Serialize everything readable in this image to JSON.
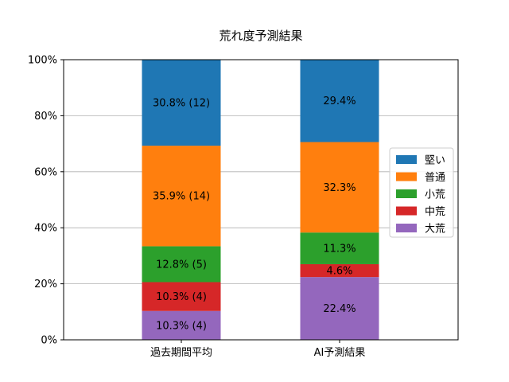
{
  "chart_data": {
    "type": "bar",
    "stacked": true,
    "title": "荒れ度予測結果",
    "xlabel": "",
    "ylabel": "",
    "ylim": [
      0,
      100
    ],
    "yticks": [
      "0%",
      "20%",
      "40%",
      "60%",
      "80%",
      "100%"
    ],
    "grid": "horizontal",
    "legend_position": "right",
    "categories": [
      "過去期間平均",
      "AI予測結果"
    ],
    "series": [
      {
        "name": "大荒",
        "color": "#9467bd",
        "values": [
          10.3,
          22.4
        ],
        "labels": [
          "10.3% (4)",
          "22.4%"
        ]
      },
      {
        "name": "中荒",
        "color": "#d62728",
        "values": [
          10.3,
          4.6
        ],
        "labels": [
          "10.3% (4)",
          "4.6%"
        ]
      },
      {
        "name": "小荒",
        "color": "#2ca02c",
        "values": [
          12.8,
          11.3
        ],
        "labels": [
          "12.8% (5)",
          "11.3%"
        ]
      },
      {
        "name": "普通",
        "color": "#ff7f0e",
        "values": [
          35.9,
          32.3
        ],
        "labels": [
          "35.9% (14)",
          "32.3%"
        ]
      },
      {
        "name": "堅い",
        "color": "#1f77b4",
        "values": [
          30.8,
          29.4
        ],
        "labels": [
          "30.8% (12)",
          "29.4%"
        ]
      }
    ],
    "legend_order": [
      "堅い",
      "普通",
      "小荒",
      "中荒",
      "大荒"
    ]
  }
}
